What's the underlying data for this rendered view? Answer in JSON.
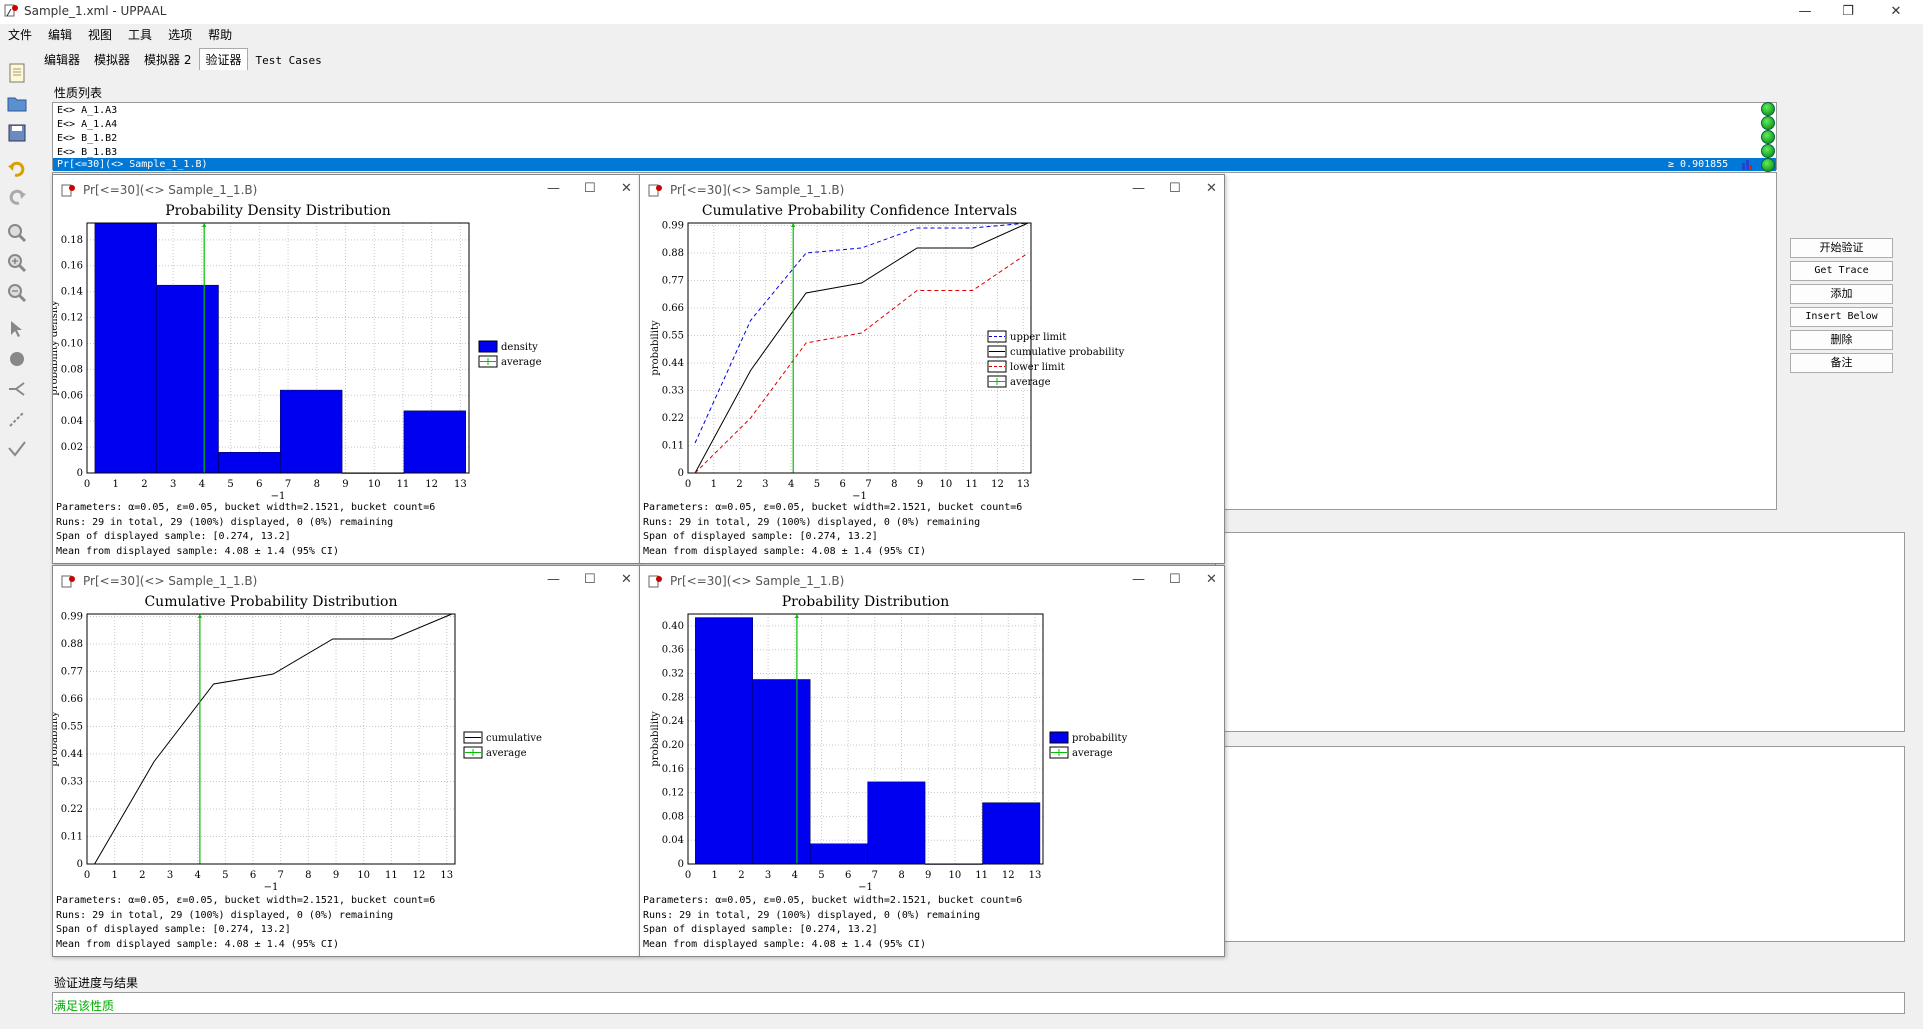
{
  "window": {
    "title": "Sample_1.xml - UPPAAL",
    "controls": {
      "minimize": "—",
      "maximize": "❐",
      "close": "✕"
    }
  },
  "menu": [
    "文件",
    "编辑",
    "视图",
    "工具",
    "选项",
    "帮助"
  ],
  "toolbar_icons": [
    "new-file-icon",
    "open-folder-icon",
    "save-icon",
    "undo-icon",
    "redo-icon",
    "zoom-fit-icon",
    "zoom-in-icon",
    "zoom-out-icon",
    "select-arrow-icon",
    "add-location-icon",
    "add-branch-icon",
    "add-edge-icon",
    "add-nail-icon"
  ],
  "tabs": [
    {
      "label": "编辑器"
    },
    {
      "label": "模拟器"
    },
    {
      "label": "模拟器 2"
    },
    {
      "label": "验证器"
    },
    {
      "label": "Test Cases"
    }
  ],
  "verifier": {
    "properties_label": "性质列表",
    "queries": [
      "E<> A_1.A3",
      "E<> A_1.A4",
      "E<> B_1.B2",
      "E<> B_1.B3"
    ],
    "selected_query": "Pr[<=30](<> Sample_1_1.B)",
    "selected_value": "≥ 0.901855",
    "buttons": [
      "开始验证",
      "Get Trace",
      "添加",
      "Insert Below",
      "删除",
      "备注"
    ],
    "progress_label": "验证进度与结果",
    "result_text": "满足该性质",
    "status_color": "#1ec81e"
  },
  "plot_windows": [
    {
      "title": "Pr[<=30](<> Sample_1_1.B)",
      "stats": [
        "Parameters: α=0.05, ε=0.05, bucket width=2.1521, bucket count=6",
        "Runs: 29 in total, 29 (100%) displayed, 0 (0%) remaining",
        "Span of displayed sample: [0.274, 13.2]",
        "Mean from displayed sample: 4.08 ± 1.4 (95% CI)"
      ],
      "chart_data": {
        "type": "bar",
        "title": "Probability Density Distribution",
        "ylabel": "probability density",
        "xlabel": "−1",
        "xlim": [
          0,
          13.3
        ],
        "ylim": [
          0,
          0.193
        ],
        "xticks": [
          0,
          1,
          2,
          3,
          4,
          5,
          6,
          7,
          8,
          9,
          10,
          11,
          12,
          13
        ],
        "yticks": [
          0,
          0.02,
          0.04,
          0.06,
          0.08,
          0.1,
          0.12,
          0.14,
          0.16,
          0.18
        ],
        "ytick_labels": [
          "0",
          "0.02",
          "0.04",
          "0.06",
          "0.08",
          "0.10",
          "0.12",
          "0.14",
          "0.16",
          "0.18"
        ],
        "bin_edges": [
          0.274,
          2.426,
          4.578,
          6.73,
          8.882,
          11.034,
          13.186
        ],
        "values": [
          0.193,
          0.145,
          0.016,
          0.064,
          0.0,
          0.048
        ],
        "average": 4.08,
        "legend": [
          "density",
          "average"
        ],
        "bar_color": "#0000f0",
        "avg_color": "#00c000"
      }
    },
    {
      "title": "Pr[<=30](<> Sample_1_1.B)",
      "stats": [
        "Parameters: α=0.05, ε=0.05, bucket width=2.1521, bucket count=6",
        "Runs: 29 in total, 29 (100%) displayed, 0 (0%) remaining",
        "Span of displayed sample: [0.274, 13.2]",
        "Mean from displayed sample: 4.08 ± 1.4 (95% CI)"
      ],
      "chart_data": {
        "type": "line",
        "title": "Cumulative Probability Confidence Intervals",
        "ylabel": "probability",
        "xlabel": "−1",
        "xlim": [
          0,
          13.3
        ],
        "ylim": [
          0,
          1.0
        ],
        "xticks": [
          0,
          1,
          2,
          3,
          4,
          5,
          6,
          7,
          8,
          9,
          10,
          11,
          12,
          13
        ],
        "yticks": [
          0,
          0.11,
          0.22,
          0.33,
          0.44,
          0.55,
          0.66,
          0.77,
          0.88,
          0.99
        ],
        "ytick_labels": [
          "0",
          "0.11",
          "0.22",
          "0.33",
          "0.44",
          "0.55",
          "0.66",
          "0.77",
          "0.88",
          "0.99"
        ],
        "x": [
          0.274,
          2.426,
          4.578,
          6.73,
          8.882,
          11.034,
          13.186
        ],
        "series": [
          {
            "name": "upper limit",
            "values": [
              0.12,
              0.61,
              0.88,
              0.9,
              0.98,
              0.98,
              1.0
            ],
            "color": "#0000e0",
            "dash": true
          },
          {
            "name": "cumulative probability",
            "values": [
              0.0,
              0.41,
              0.72,
              0.76,
              0.9,
              0.9,
              1.0
            ],
            "color": "#000000",
            "dash": false
          },
          {
            "name": "lower limit",
            "values": [
              0.0,
              0.22,
              0.52,
              0.56,
              0.73,
              0.73,
              0.88
            ],
            "color": "#e00000",
            "dash": true
          }
        ],
        "average": 4.08,
        "legend": [
          "upper limit",
          "cumulative probability",
          "lower limit",
          "average"
        ],
        "avg_color": "#00c000"
      }
    },
    {
      "title": "Pr[<=30](<> Sample_1_1.B)",
      "stats": [
        "Parameters: α=0.05, ε=0.05, bucket width=2.1521, bucket count=6",
        "Runs: 29 in total, 29 (100%) displayed, 0 (0%) remaining",
        "Span of displayed sample: [0.274, 13.2]",
        "Mean from displayed sample: 4.08 ± 1.4 (95% CI)"
      ],
      "chart_data": {
        "type": "line",
        "title": "Cumulative Probability Distribution",
        "ylabel": "probability",
        "xlabel": "−1",
        "xlim": [
          0,
          13.3
        ],
        "ylim": [
          0,
          1.0
        ],
        "xticks": [
          0,
          1,
          2,
          3,
          4,
          5,
          6,
          7,
          8,
          9,
          10,
          11,
          12,
          13
        ],
        "yticks": [
          0,
          0.11,
          0.22,
          0.33,
          0.44,
          0.55,
          0.66,
          0.77,
          0.88,
          0.99
        ],
        "ytick_labels": [
          "0",
          "0.11",
          "0.22",
          "0.33",
          "0.44",
          "0.55",
          "0.66",
          "0.77",
          "0.88",
          "0.99"
        ],
        "x": [
          0.274,
          2.426,
          4.578,
          6.73,
          8.882,
          11.034,
          13.186
        ],
        "series": [
          {
            "name": "cumulative",
            "values": [
              0.0,
              0.41,
              0.72,
              0.76,
              0.9,
              0.9,
              1.0
            ],
            "color": "#000000",
            "dash": false
          }
        ],
        "average": 4.08,
        "legend": [
          "cumulative",
          "average"
        ],
        "avg_color": "#00c000"
      }
    },
    {
      "title": "Pr[<=30](<> Sample_1_1.B)",
      "stats": [
        "Parameters: α=0.05, ε=0.05, bucket width=2.1521, bucket count=6",
        "Runs: 29 in total, 29 (100%) displayed, 0 (0%) remaining",
        "Span of displayed sample: [0.274, 13.2]",
        "Mean from displayed sample: 4.08 ± 1.4 (95% CI)"
      ],
      "chart_data": {
        "type": "bar",
        "title": "Probability Distribution",
        "ylabel": "probability",
        "xlabel": "−1",
        "xlim": [
          0,
          13.3
        ],
        "ylim": [
          0,
          0.42
        ],
        "xticks": [
          0,
          1,
          2,
          3,
          4,
          5,
          6,
          7,
          8,
          9,
          10,
          11,
          12,
          13
        ],
        "yticks": [
          0,
          0.04,
          0.08,
          0.12,
          0.16,
          0.2,
          0.24,
          0.28,
          0.32,
          0.36,
          0.4
        ],
        "ytick_labels": [
          "0",
          "0.04",
          "0.08",
          "0.12",
          "0.16",
          "0.20",
          "0.24",
          "0.28",
          "0.32",
          "0.36",
          "0.40"
        ],
        "bin_edges": [
          0.274,
          2.426,
          4.578,
          6.73,
          8.882,
          11.034,
          13.186
        ],
        "values": [
          0.414,
          0.31,
          0.034,
          0.138,
          0.0,
          0.103
        ],
        "average": 4.08,
        "legend": [
          "probability",
          "average"
        ],
        "bar_color": "#0000f0",
        "avg_color": "#00c000"
      }
    }
  ]
}
